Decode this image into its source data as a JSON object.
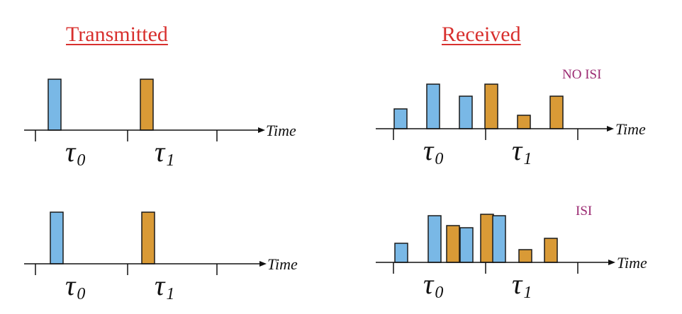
{
  "headings": {
    "transmitted": "Transmitted",
    "received": "Received"
  },
  "notes": {
    "no_isi": "NO ISI",
    "isi": "ISI"
  },
  "axis": {
    "time_label": "Time",
    "tau0_symbol": "τ",
    "tau0_sub": "0",
    "tau1_symbol": "τ",
    "tau1_sub": "1"
  },
  "colors": {
    "blue": "#79b8e6",
    "orange": "#d99a36",
    "outline": "#1a1a1a",
    "heading": "#d8302e",
    "note": "#9b2a72"
  },
  "panels": [
    {
      "id": "transmitted-top",
      "bars": [
        {
          "color": "blue",
          "level": 1.0
        },
        {
          "color": "orange",
          "level": 1.0
        }
      ]
    },
    {
      "id": "received-top",
      "note": "no_isi",
      "bars": [
        {
          "color": "blue",
          "level": 0.4
        },
        {
          "color": "blue",
          "level": 0.9
        },
        {
          "color": "blue",
          "level": 0.65
        },
        {
          "color": "orange",
          "level": 0.9
        },
        {
          "color": "orange",
          "level": 0.27
        },
        {
          "color": "orange",
          "level": 0.65
        }
      ]
    },
    {
      "id": "transmitted-bottom",
      "bars": [
        {
          "color": "blue",
          "level": 1.0
        },
        {
          "color": "orange",
          "level": 1.0
        }
      ]
    },
    {
      "id": "received-bottom",
      "note": "isi",
      "bars": [
        {
          "color": "blue",
          "level": 0.4
        },
        {
          "color": "blue",
          "level": 0.97
        },
        {
          "color": "orange",
          "level": 0.77
        },
        {
          "color": "blue",
          "level": 0.72
        },
        {
          "color": "orange",
          "level": 1.0
        },
        {
          "color": "blue",
          "level": 0.97
        },
        {
          "color": "orange",
          "level": 0.27
        },
        {
          "color": "orange",
          "level": 0.5
        }
      ]
    }
  ]
}
